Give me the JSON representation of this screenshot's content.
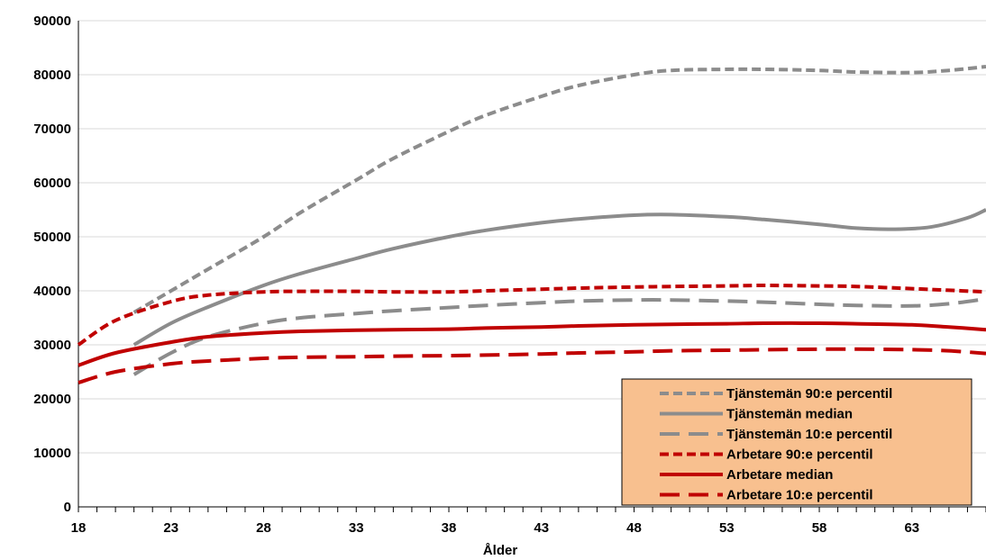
{
  "chart_data": {
    "type": "line",
    "title": "",
    "xlabel": "Ålder",
    "ylabel": "",
    "xlim": [
      18,
      67
    ],
    "ylim": [
      0,
      90000
    ],
    "x_ticks": [
      18,
      23,
      28,
      33,
      38,
      43,
      48,
      53,
      58,
      63
    ],
    "y_ticks": [
      0,
      10000,
      20000,
      30000,
      40000,
      50000,
      60000,
      70000,
      80000,
      90000
    ],
    "grid": "horizontal",
    "legend_position": "bottom-right",
    "legend_background": "#F8C08F",
    "series": [
      {
        "name": "Tjänstemän 90:e percentil",
        "color": "#8C8C8C",
        "dash": "short",
        "x": [
          21,
          23,
          25,
          28,
          30,
          33,
          35,
          38,
          40,
          43,
          45,
          48,
          50,
          53,
          55,
          58,
          60,
          63,
          65,
          67
        ],
        "y": [
          36000,
          40000,
          44000,
          50000,
          54500,
          60500,
          64500,
          69500,
          72500,
          76000,
          78000,
          80000,
          80800,
          81000,
          81000,
          80800,
          80500,
          80400,
          80800,
          81500
        ]
      },
      {
        "name": "Tjänstemän median",
        "color": "#8C8C8C",
        "dash": "solid",
        "x": [
          21,
          23,
          25,
          28,
          30,
          33,
          35,
          38,
          40,
          43,
          45,
          48,
          50,
          53,
          55,
          58,
          60,
          62,
          64,
          66,
          67
        ],
        "y": [
          30000,
          34000,
          37000,
          41000,
          43200,
          46000,
          47800,
          50000,
          51200,
          52600,
          53300,
          54000,
          54100,
          53700,
          53200,
          52300,
          51600,
          51400,
          51800,
          53500,
          55000
        ]
      },
      {
        "name": "Tjänstemän 10:e percentil",
        "color": "#8C8C8C",
        "dash": "long",
        "x": [
          21,
          23,
          25,
          28,
          30,
          33,
          35,
          38,
          40,
          43,
          45,
          48,
          50,
          53,
          55,
          58,
          60,
          63,
          65,
          67
        ],
        "y": [
          24500,
          28500,
          31500,
          34000,
          35000,
          35800,
          36300,
          36900,
          37300,
          37800,
          38100,
          38300,
          38300,
          38100,
          37900,
          37500,
          37300,
          37200,
          37600,
          38500
        ]
      },
      {
        "name": "Arbetare 90:e percentil",
        "color": "#C00000",
        "dash": "short",
        "x": [
          18,
          20,
          23,
          25,
          28,
          30,
          33,
          35,
          38,
          40,
          43,
          45,
          48,
          50,
          53,
          55,
          58,
          60,
          63,
          65,
          67
        ],
        "y": [
          30000,
          34500,
          38000,
          39200,
          39800,
          39900,
          39900,
          39800,
          39800,
          40000,
          40300,
          40500,
          40700,
          40800,
          40900,
          41000,
          40900,
          40800,
          40400,
          40100,
          39800
        ]
      },
      {
        "name": "Arbetare median",
        "color": "#C00000",
        "dash": "solid",
        "x": [
          18,
          20,
          23,
          25,
          28,
          30,
          33,
          35,
          38,
          40,
          43,
          45,
          48,
          50,
          53,
          55,
          58,
          60,
          63,
          65,
          67
        ],
        "y": [
          26200,
          28500,
          30500,
          31500,
          32200,
          32500,
          32700,
          32800,
          32900,
          33100,
          33300,
          33500,
          33700,
          33800,
          33900,
          34000,
          34000,
          33900,
          33700,
          33300,
          32800
        ]
      },
      {
        "name": "Arbetare 10:e percentil",
        "color": "#C00000",
        "dash": "long",
        "x": [
          18,
          20,
          23,
          25,
          28,
          30,
          33,
          35,
          38,
          40,
          43,
          45,
          48,
          50,
          53,
          55,
          58,
          60,
          63,
          65,
          67
        ],
        "y": [
          23000,
          25000,
          26500,
          27000,
          27500,
          27700,
          27800,
          27900,
          28000,
          28100,
          28300,
          28500,
          28700,
          28900,
          29000,
          29100,
          29200,
          29200,
          29100,
          28900,
          28400
        ]
      }
    ]
  }
}
